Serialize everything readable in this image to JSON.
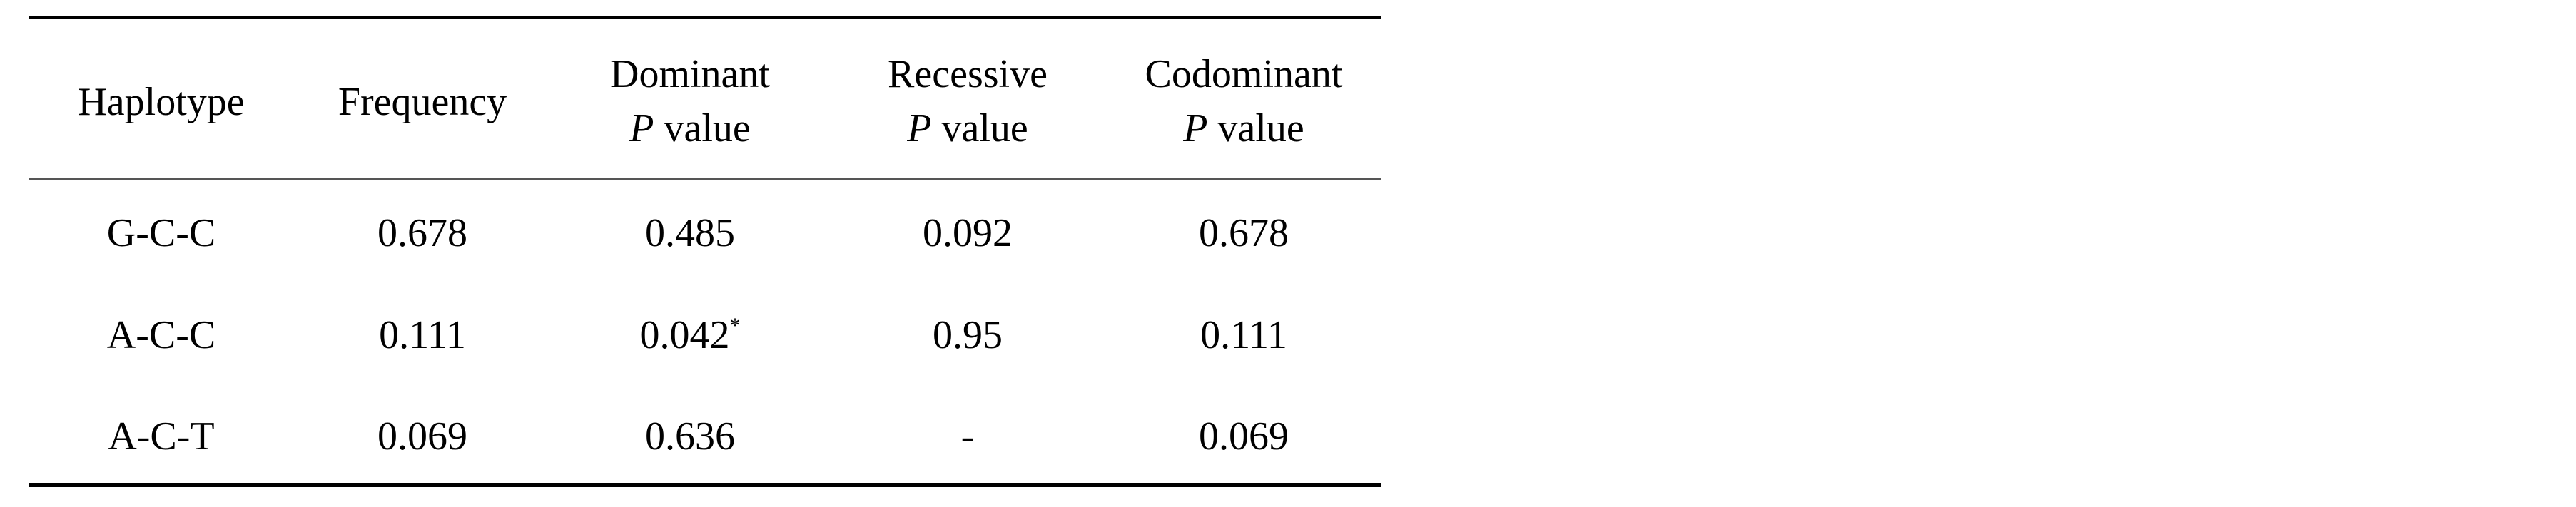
{
  "table": {
    "headers": [
      {
        "text": "Haplotype"
      },
      {
        "text": "Frequency"
      },
      {
        "text": "Dominant",
        "italic": "P",
        "rest": "value"
      },
      {
        "text": "Recessive",
        "italic": "P",
        "rest": "value"
      },
      {
        "text": "Codominant",
        "italic": "P",
        "rest": "value"
      }
    ],
    "rows": [
      [
        {
          "text": "G-C-C"
        },
        {
          "text": "0.678"
        },
        {
          "text": "0.485"
        },
        {
          "text": "0.092"
        },
        {
          "text": "0.678"
        }
      ],
      [
        {
          "text": "A-C-C"
        },
        {
          "text": "0.111"
        },
        {
          "text": "0.042",
          "sup": "*"
        },
        {
          "text": "0.95"
        },
        {
          "text": "0.111"
        }
      ],
      [
        {
          "text": "A-C-T"
        },
        {
          "text": "0.069"
        },
        {
          "text": "0.636"
        },
        {
          "text": "-"
        },
        {
          "text": "0.069"
        }
      ]
    ]
  }
}
